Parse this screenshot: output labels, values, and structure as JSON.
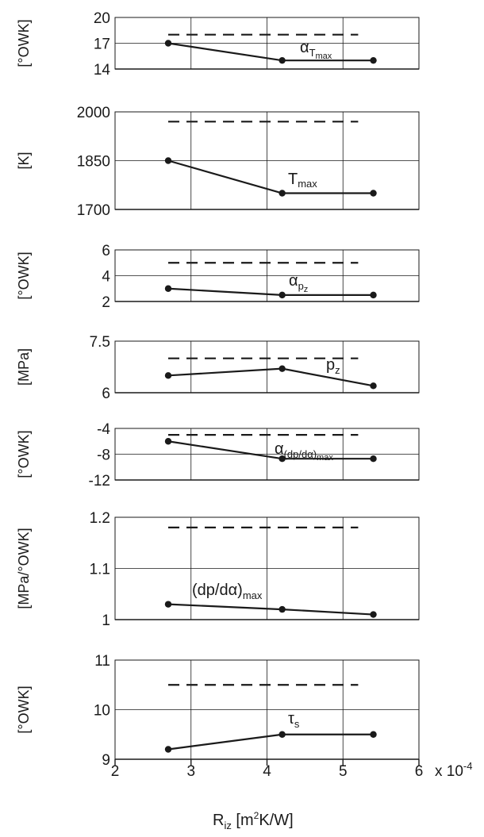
{
  "chart_data": [
    {
      "type": "line",
      "ylabel": "[°OWK]",
      "ylim": [
        14,
        20
      ],
      "yticks": [
        "20",
        "17",
        "14"
      ],
      "series": [
        {
          "name": "α_Tmax",
          "x": [
            2.7,
            4.2,
            5.4
          ],
          "y": [
            17,
            15,
            15
          ]
        },
        {
          "style": "dashed",
          "x": [
            2.7,
            5.2
          ],
          "y": [
            18,
            18
          ]
        }
      ]
    },
    {
      "type": "line",
      "ylabel": "[K]",
      "ylim": [
        1700,
        2000
      ],
      "yticks": [
        "2000",
        "1850",
        "1700"
      ],
      "series": [
        {
          "name": "Tmax",
          "x": [
            2.7,
            4.2,
            5.4
          ],
          "y": [
            1850,
            1750,
            1750
          ]
        },
        {
          "style": "dashed",
          "x": [
            2.7,
            5.2
          ],
          "y": [
            1970,
            1970
          ]
        }
      ]
    },
    {
      "type": "line",
      "ylabel": "[°OWK]",
      "ylim": [
        2,
        6
      ],
      "yticks": [
        "6",
        "4",
        "2"
      ],
      "series": [
        {
          "name": "α_pz",
          "x": [
            2.7,
            4.2,
            5.4
          ],
          "y": [
            3,
            2.5,
            2.5
          ]
        },
        {
          "style": "dashed",
          "x": [
            2.7,
            5.2
          ],
          "y": [
            5,
            5
          ]
        }
      ]
    },
    {
      "type": "line",
      "ylabel": "[MPa]",
      "ylim": [
        6,
        7.5
      ],
      "yticks": [
        "7.5",
        "6"
      ],
      "series": [
        {
          "name": "p_z",
          "x": [
            2.7,
            4.2,
            5.4
          ],
          "y": [
            6.5,
            6.7,
            6.2
          ]
        },
        {
          "style": "dashed",
          "x": [
            2.7,
            5.2
          ],
          "y": [
            7.0,
            7.0
          ]
        }
      ]
    },
    {
      "type": "line",
      "ylabel": "[°OWK]",
      "ylim": [
        -12,
        -4
      ],
      "yticks": [
        "-4",
        "-8",
        "-12"
      ],
      "series": [
        {
          "name": "α_(dp/dα)max",
          "x": [
            2.7,
            4.2,
            5.4
          ],
          "y": [
            -6,
            -8.7,
            -8.7
          ]
        },
        {
          "style": "dashed",
          "x": [
            2.7,
            5.2
          ],
          "y": [
            -5,
            -5
          ]
        }
      ]
    },
    {
      "type": "line",
      "ylabel": "[MPa/°OWK]",
      "ylim": [
        1,
        1.2
      ],
      "yticks": [
        "1.2",
        "1.1",
        "1"
      ],
      "series": [
        {
          "name": "(dp/dα)max",
          "x": [
            2.7,
            4.2,
            5.4
          ],
          "y": [
            1.03,
            1.02,
            1.01
          ]
        },
        {
          "style": "dashed",
          "x": [
            2.7,
            5.2
          ],
          "y": [
            1.18,
            1.18
          ]
        }
      ]
    },
    {
      "type": "line",
      "ylabel": "[°OWK]",
      "ylim": [
        9,
        11
      ],
      "yticks": [
        "11",
        "10",
        "9"
      ],
      "series": [
        {
          "name": "τ_s",
          "x": [
            2.7,
            4.2,
            5.4
          ],
          "y": [
            9.2,
            9.5,
            9.5
          ]
        },
        {
          "style": "dashed",
          "x": [
            2.7,
            5.2
          ],
          "y": [
            10.5,
            10.5
          ]
        }
      ]
    }
  ],
  "xaxis": {
    "xlim": [
      2,
      6
    ],
    "ticks": [
      "2",
      "3",
      "4",
      "5",
      "6"
    ],
    "multiplier": "x 10",
    "exponent": "-4",
    "label_main": "R",
    "label_sub": "iz",
    "label_unit_a": " [m",
    "label_unit_sup": "2",
    "label_unit_b": "K/W]"
  },
  "labels": {
    "a_tmax_main": "α",
    "a_tmax_sub": "T",
    "a_tmax_subsub": "max",
    "tmax_main": "T",
    "tmax_sub": "max",
    "a_pz_main": "α",
    "a_pz_sub": "p",
    "a_pz_subsub": "z",
    "pz_main": "p",
    "pz_sub": "z",
    "a_dp_main": "α",
    "a_dp_sub": "(dp/dα)",
    "a_dp_subsub": "max",
    "dp_main": "(dp/dα)",
    "dp_sub": "max",
    "tau_main": "τ",
    "tau_sub": "s"
  }
}
